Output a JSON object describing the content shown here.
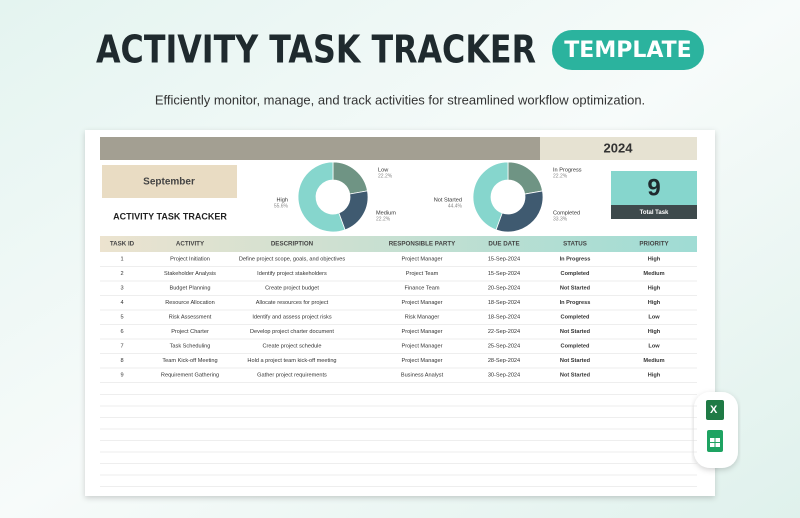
{
  "header": {
    "title": "ACTIVITY TASK TRACKER",
    "badge": "TEMPLATE",
    "subtitle": "Efficiently monitor, manage, and track activities for streamlined workflow optimization."
  },
  "sheet": {
    "year": "2024",
    "month": "September",
    "title": "ACTIVITY TASK TRACKER",
    "total": "9",
    "total_label": "Total Task"
  },
  "chart_data": [
    {
      "type": "donut",
      "categories": [
        "Low",
        "Medium",
        "High"
      ],
      "values": [
        22.2,
        22.2,
        55.6
      ],
      "value_labels": [
        "22.2%",
        "22.2%",
        "55.6%"
      ],
      "colors": [
        "#6f9484",
        "#3f5a70",
        "#86d6cd"
      ]
    },
    {
      "type": "donut",
      "categories": [
        "In Progress",
        "Completed",
        "Not Started"
      ],
      "values": [
        22.2,
        33.3,
        44.4
      ],
      "value_labels": [
        "22.2%",
        "33.3%",
        "44.4%"
      ],
      "colors": [
        "#6f9484",
        "#3f5a70",
        "#86d6cd"
      ]
    }
  ],
  "table": {
    "columns": [
      "TASK ID",
      "ACTIVITY",
      "DESCRIPTION",
      "RESPONSIBLE PARTY",
      "DUE DATE",
      "STATUS",
      "PRIORITY"
    ],
    "rows": [
      [
        1,
        "Project Initiation",
        "Define project scope, goals, and objectives",
        "Project Manager",
        "15-Sep-2024",
        "In Progress",
        "High"
      ],
      [
        2,
        "Stakeholder Analysis",
        "Identify project stakeholders",
        "Project Team",
        "15-Sep-2024",
        "Completed",
        "Medium"
      ],
      [
        3,
        "Budget Planning",
        "Create project budget",
        "Finance Team",
        "20-Sep-2024",
        "Not Started",
        "High"
      ],
      [
        4,
        "Resource Allocation",
        "Allocate resources for project",
        "Project Manager",
        "18-Sep-2024",
        "In Progress",
        "High"
      ],
      [
        5,
        "Risk Assessment",
        "Identify and assess project risks",
        "Risk Manager",
        "18-Sep-2024",
        "Completed",
        "Low"
      ],
      [
        6,
        "Project Charter",
        "Develop project charter document",
        "Project Manager",
        "22-Sep-2024",
        "Not Started",
        "High"
      ],
      [
        7,
        "Task Scheduling",
        "Create project schedule",
        "Project Manager",
        "25-Sep-2024",
        "Completed",
        "Low"
      ],
      [
        8,
        "Team Kick-off Meeting",
        "Hold a project team kick-off meeting",
        "Project Manager",
        "28-Sep-2024",
        "Not Started",
        "Medium"
      ],
      [
        9,
        "Requirement Gathering",
        "Gather project requirements",
        "Business Analyst",
        "30-Sep-2024",
        "Not Started",
        "High"
      ]
    ],
    "text_colors": {
      "In Progress": "#e08a1e",
      "Completed": "#2f9a48",
      "Not Started": "#d42e2e",
      "High": "#d42e2e",
      "Medium": "#e08a1e",
      "Low": "#2f9a48"
    }
  }
}
